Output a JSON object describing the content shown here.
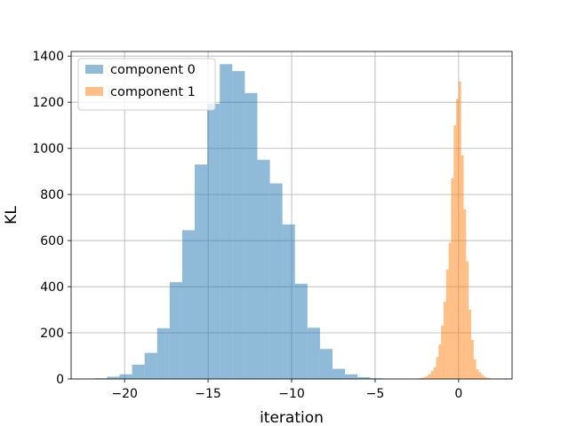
{
  "chart_data": {
    "type": "bar",
    "subtype": "histogram",
    "xlabel": "iteration",
    "ylabel": "KL",
    "xlim": [
      -23.2,
      3.2
    ],
    "ylim": [
      0,
      1420
    ],
    "xticks": [
      -20,
      -15,
      -10,
      -5,
      0
    ],
    "yticks": [
      0,
      200,
      400,
      600,
      800,
      1000,
      1200,
      1400
    ],
    "grid": true,
    "legend_position": "top-left",
    "series": [
      {
        "name": "component 0",
        "color": "#1f77b4",
        "alpha": 0.5,
        "bin_width": 0.75,
        "bins": [
          {
            "x0": -21.8,
            "count": 3
          },
          {
            "x0": -21.05,
            "count": 10
          },
          {
            "x0": -20.3,
            "count": 20
          },
          {
            "x0": -19.55,
            "count": 62
          },
          {
            "x0": -18.8,
            "count": 113
          },
          {
            "x0": -18.05,
            "count": 220
          },
          {
            "x0": -17.3,
            "count": 420
          },
          {
            "x0": -16.55,
            "count": 645
          },
          {
            "x0": -15.8,
            "count": 930
          },
          {
            "x0": -15.05,
            "count": 1193
          },
          {
            "x0": -14.3,
            "count": 1365
          },
          {
            "x0": -13.55,
            "count": 1335
          },
          {
            "x0": -12.8,
            "count": 1240
          },
          {
            "x0": -12.05,
            "count": 950
          },
          {
            "x0": -11.3,
            "count": 848
          },
          {
            "x0": -10.55,
            "count": 670
          },
          {
            "x0": -9.8,
            "count": 413
          },
          {
            "x0": -9.05,
            "count": 222
          },
          {
            "x0": -8.3,
            "count": 130
          },
          {
            "x0": -7.55,
            "count": 44
          },
          {
            "x0": -6.8,
            "count": 20
          },
          {
            "x0": -6.05,
            "count": 8
          },
          {
            "x0": -5.3,
            "count": 3
          }
        ]
      },
      {
        "name": "component 1",
        "color": "#ff7f0e",
        "alpha": 0.5,
        "bin_width": 0.15,
        "bins": [
          {
            "x0": -2.55,
            "count": 2
          },
          {
            "x0": -2.4,
            "count": 3
          },
          {
            "x0": -2.25,
            "count": 5
          },
          {
            "x0": -2.1,
            "count": 8
          },
          {
            "x0": -1.95,
            "count": 14
          },
          {
            "x0": -1.8,
            "count": 22
          },
          {
            "x0": -1.65,
            "count": 35
          },
          {
            "x0": -1.5,
            "count": 50
          },
          {
            "x0": -1.35,
            "count": 95
          },
          {
            "x0": -1.2,
            "count": 150
          },
          {
            "x0": -1.05,
            "count": 232
          },
          {
            "x0": -0.9,
            "count": 335
          },
          {
            "x0": -0.75,
            "count": 475
          },
          {
            "x0": -0.6,
            "count": 590
          },
          {
            "x0": -0.45,
            "count": 870
          },
          {
            "x0": -0.3,
            "count": 1100
          },
          {
            "x0": -0.15,
            "count": 1215
          },
          {
            "x0": 0.0,
            "count": 1290
          },
          {
            "x0": 0.15,
            "count": 970
          },
          {
            "x0": 0.3,
            "count": 735
          },
          {
            "x0": 0.45,
            "count": 510
          },
          {
            "x0": 0.6,
            "count": 300
          },
          {
            "x0": 0.75,
            "count": 170
          },
          {
            "x0": 0.9,
            "count": 85
          },
          {
            "x0": 1.05,
            "count": 42
          },
          {
            "x0": 1.2,
            "count": 30
          },
          {
            "x0": 1.35,
            "count": 18
          },
          {
            "x0": 1.5,
            "count": 10
          },
          {
            "x0": 1.65,
            "count": 5
          },
          {
            "x0": 1.8,
            "count": 3
          }
        ]
      }
    ]
  }
}
